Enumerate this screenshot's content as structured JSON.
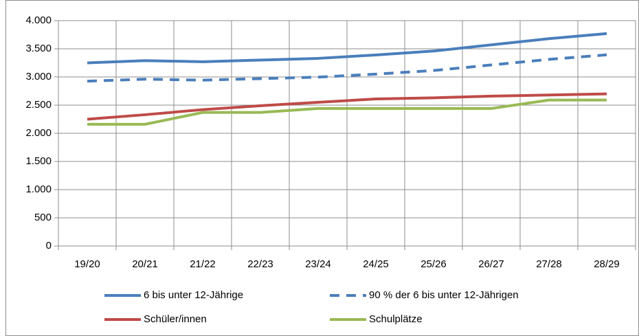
{
  "chart_data": {
    "type": "line",
    "categories": [
      "19/20",
      "20/21",
      "21/22",
      "22/23",
      "23/24",
      "24/25",
      "25/26",
      "26/27",
      "27/28",
      "28/29"
    ],
    "series": [
      {
        "name": "6 bis unter 12-Jährige",
        "color": "#4a7ebb",
        "dashed": false,
        "values": [
          3250,
          3290,
          3270,
          3300,
          3330,
          3390,
          3460,
          3570,
          3680,
          3770
        ]
      },
      {
        "name": "90 % der 6 bis unter 12-Jährigen",
        "color": "#4a7ebb",
        "dashed": true,
        "values": [
          2925,
          2961,
          2943,
          2970,
          2997,
          3051,
          3114,
          3213,
          3312,
          3393
        ]
      },
      {
        "name": "Schüler/innen",
        "color": "#be4b48",
        "dashed": false,
        "values": [
          2250,
          2330,
          2420,
          2490,
          2550,
          2610,
          2630,
          2660,
          2680,
          2700
        ]
      },
      {
        "name": "Schulplätze",
        "color": "#98b954",
        "dashed": false,
        "values": [
          2160,
          2160,
          2370,
          2370,
          2440,
          2440,
          2440,
          2440,
          2590,
          2590
        ]
      }
    ],
    "ylim": [
      0,
      4000
    ],
    "yticks": [
      0,
      500,
      {
        "value": 1000,
        "label": "1.000"
      },
      {
        "value": 1500,
        "label": "1.500"
      },
      {
        "value": 2000,
        "label": "2.000"
      },
      {
        "value": 2500,
        "label": "2.500"
      },
      {
        "value": 3000,
        "label": "3.000"
      },
      {
        "value": 3500,
        "label": "3.500"
      },
      {
        "value": 4000,
        "label": "4.000"
      }
    ],
    "grid": true
  }
}
